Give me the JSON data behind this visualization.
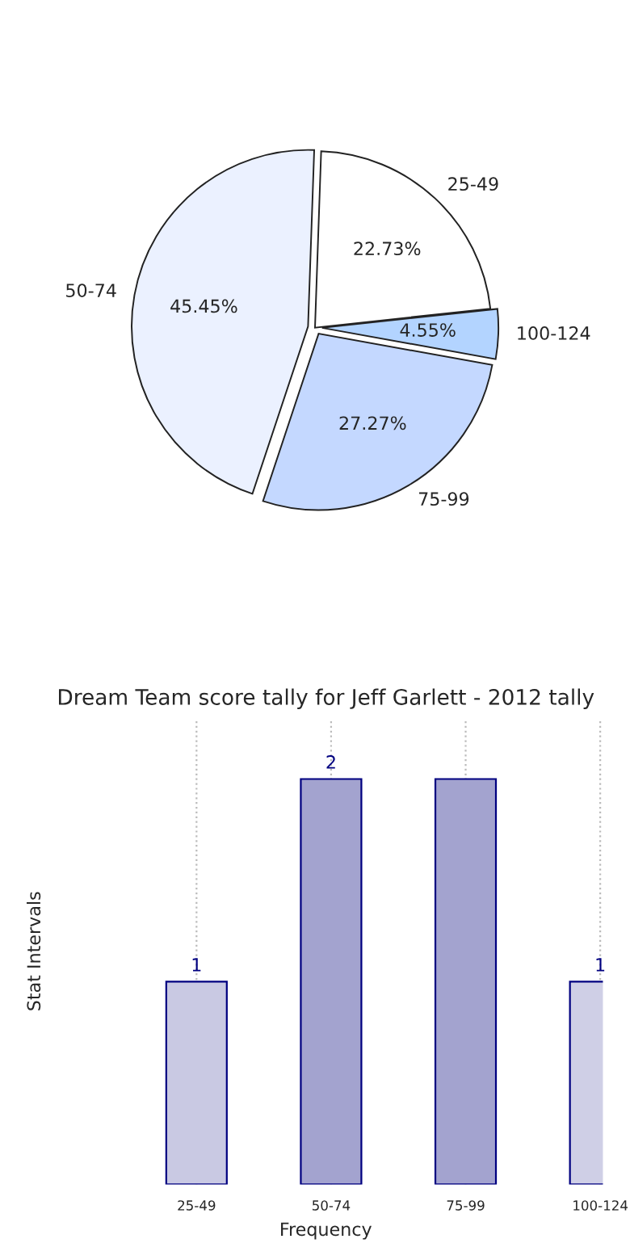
{
  "chart_data": [
    {
      "type": "bar",
      "title": "Dream Team score tally for Jeff Garlett - 2012 tally",
      "xlabel": "Frequency",
      "ylabel": "Stat Intervals",
      "categories": [
        "25-49",
        "50-74",
        "75-99",
        "100-124"
      ],
      "values": [
        1,
        2,
        2,
        1
      ],
      "value_labels": [
        "1",
        "2",
        null,
        "1"
      ],
      "colors": [
        "#c9c9e3",
        "#a3a3cf",
        "#a3a3cf",
        "#cfcfe6"
      ],
      "ylim": [
        0,
        2.3
      ],
      "tick_labels": "x",
      "grid": "x"
    },
    {
      "type": "pie",
      "categories": [
        "25-49",
        "100-124",
        "75-99",
        "50-74"
      ],
      "values": [
        22.73,
        4.55,
        27.27,
        45.45
      ],
      "value_labels": [
        "22.73%",
        "4.55%",
        "27.27%",
        "45.45%"
      ],
      "colors": [
        "#ffffff",
        "#b3d4ff",
        "#c4d8ff",
        "#ebf1ff"
      ]
    }
  ]
}
